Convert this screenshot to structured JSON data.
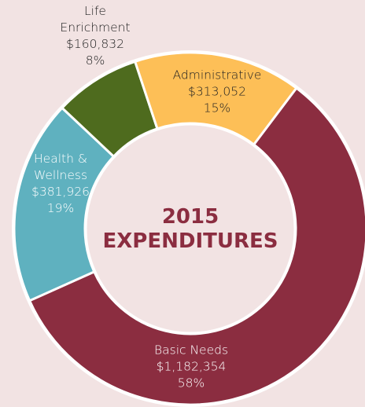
{
  "chart_data": {
    "type": "donut",
    "title": "2015 EXPENDITURES",
    "categories": [
      "Basic Needs",
      "Health & Wellness",
      "Life Enrichment",
      "Administrative"
    ],
    "values": [
      1182354,
      381926,
      160832,
      313052
    ],
    "value_labels": [
      "$1,182,354",
      "$381,926",
      "$160,832",
      "$313,052"
    ],
    "percent_labels": [
      "58%",
      "19%",
      "8%",
      "15%"
    ],
    "colors": [
      "#8b2d40",
      "#5fb1bf",
      "#4e6b1e",
      "#fdbf57"
    ]
  }
}
